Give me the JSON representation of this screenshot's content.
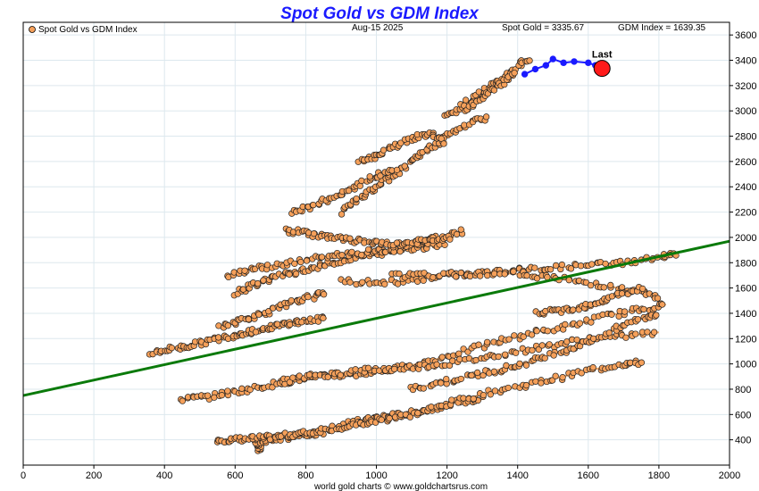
{
  "colors": {
    "title": "#1a1aff",
    "history_fill": "#f5a05a",
    "history_line": "#f0a868",
    "recent": "#1a1aff",
    "last": "#ff1a1a",
    "trend": "#0a7a0a",
    "grid": "#dde8ee"
  },
  "chart_data": {
    "type": "scatter",
    "title": "Spot Gold vs GDM Index",
    "date": "Aug-15  2025",
    "legend": "Spot Gold vs GDM Index",
    "legend_position": "top-left",
    "spot_gold_label": "Spot Gold = 3335.67",
    "gdm_index_label": "GDM Index = 1639.35",
    "last_label": "Last",
    "footer": "world gold charts © www.goldchartsrus.com",
    "xlabel": "",
    "ylabel": "",
    "xlim": [
      0,
      2000
    ],
    "ylim": [
      200,
      3700
    ],
    "x_ticks": [
      0,
      200,
      400,
      600,
      800,
      1000,
      1200,
      1400,
      1600,
      1800,
      2000
    ],
    "y_ticks": [
      400,
      600,
      800,
      1000,
      1200,
      1400,
      1600,
      1800,
      2000,
      2200,
      2400,
      2600,
      2800,
      3000,
      3200,
      3400,
      3600
    ],
    "grid": true,
    "trendline": {
      "x": [
        0,
        2000
      ],
      "y": [
        750,
        1970
      ]
    },
    "last_point": {
      "x": 1639,
      "y": 3336
    },
    "recent": {
      "x": [
        1420,
        1450,
        1480,
        1500,
        1530,
        1560,
        1600,
        1620,
        1639
      ],
      "y": [
        3290,
        3330,
        3360,
        3410,
        3380,
        3390,
        3380,
        3360,
        3336
      ]
    },
    "history_paths": [
      {
        "x": [
          670,
          670,
          660,
          700,
          750,
          800,
          850
        ],
        "y": [
          320,
          350,
          380,
          400,
          420,
          440,
          460
        ]
      },
      {
        "x": [
          550,
          600,
          650,
          700,
          760,
          820,
          880,
          940,
          1000,
          1080,
          1150,
          1230,
          1300
        ],
        "y": [
          400,
          400,
          410,
          420,
          440,
          460,
          500,
          540,
          580,
          600,
          640,
          700,
          720
        ]
      },
      {
        "x": [
          880,
          950,
          1020,
          1100,
          1200,
          1300,
          1400,
          1500,
          1600,
          1700,
          1750
        ],
        "y": [
          480,
          520,
          560,
          600,
          680,
          760,
          820,
          880,
          950,
          1000,
          1010
        ]
      },
      {
        "x": [
          450,
          520,
          600,
          680,
          760,
          850,
          950,
          1050,
          1150,
          1250,
          1350,
          1450,
          1550,
          1650,
          1750,
          1820
        ],
        "y": [
          720,
          740,
          780,
          820,
          870,
          900,
          920,
          960,
          1020,
          1100,
          1180,
          1250,
          1300,
          1380,
          1430,
          1470
        ]
      },
      {
        "x": [
          720,
          800,
          880,
          960,
          1040,
          1120,
          1200,
          1300,
          1400,
          1500,
          1600,
          1700,
          1800
        ],
        "y": [
          850,
          900,
          920,
          950,
          960,
          980,
          1000,
          1050,
          1100,
          1150,
          1200,
          1220,
          1250
        ]
      },
      {
        "x": [
          1100,
          1180,
          1260,
          1340,
          1420,
          1500,
          1580,
          1660,
          1740,
          1800
        ],
        "y": [
          800,
          850,
          900,
          950,
          1000,
          1080,
          1150,
          1250,
          1350,
          1400
        ]
      },
      {
        "x": [
          360,
          420,
          480,
          540,
          600,
          650,
          700,
          750,
          800,
          860
        ],
        "y": [
          1080,
          1120,
          1150,
          1190,
          1230,
          1260,
          1290,
          1320,
          1340,
          1360
        ]
      },
      {
        "x": [
          560,
          620,
          680,
          740,
          800,
          860
        ],
        "y": [
          1300,
          1350,
          1400,
          1460,
          1520,
          1560
        ]
      },
      {
        "x": [
          600,
          650,
          700,
          760,
          820,
          880,
          940,
          1000,
          1060,
          1120,
          1180,
          1250
        ],
        "y": [
          1560,
          1620,
          1680,
          1720,
          1760,
          1800,
          1840,
          1870,
          1900,
          1950,
          2000,
          2060
        ]
      },
      {
        "x": [
          580,
          640,
          720,
          800,
          880,
          960,
          1040,
          1120,
          1200
        ],
        "y": [
          1700,
          1750,
          1780,
          1820,
          1860,
          1880,
          1900,
          1920,
          1950
        ]
      },
      {
        "x": [
          740,
          800,
          860,
          920,
          980,
          1040,
          1100,
          1160,
          1220
        ],
        "y": [
          2050,
          2040,
          2000,
          1980,
          1960,
          1940,
          1960,
          1980,
          2000
        ]
      },
      {
        "x": [
          900,
          1000,
          1100,
          1200,
          1300,
          1400,
          1500,
          1600,
          1700,
          1800,
          1850
        ],
        "y": [
          1650,
          1640,
          1660,
          1700,
          1720,
          1740,
          1760,
          1780,
          1800,
          1840,
          1870
        ]
      },
      {
        "x": [
          1050,
          1150,
          1250,
          1350,
          1450,
          1550,
          1650,
          1750,
          1800
        ],
        "y": [
          1700,
          1700,
          1710,
          1720,
          1700,
          1660,
          1620,
          1560,
          1520
        ]
      },
      {
        "x": [
          1450,
          1520,
          1580,
          1640,
          1700,
          1760
        ],
        "y": [
          1400,
          1420,
          1450,
          1500,
          1560,
          1600
        ]
      },
      {
        "x": [
          900,
          950,
          1000,
          1050,
          1100,
          1150,
          1200,
          1260,
          1320
        ],
        "y": [
          2200,
          2300,
          2400,
          2500,
          2600,
          2700,
          2800,
          2900,
          2950
        ]
      },
      {
        "x": [
          760,
          820,
          880,
          940,
          1000,
          1060
        ],
        "y": [
          2200,
          2250,
          2320,
          2400,
          2480,
          2550
        ]
      },
      {
        "x": [
          950,
          1000,
          1050,
          1100,
          1150,
          1200
        ],
        "y": [
          2600,
          2650,
          2720,
          2780,
          2820,
          2750
        ]
      },
      {
        "x": [
          1200,
          1250,
          1300,
          1350,
          1400,
          1430
        ],
        "y": [
          2950,
          3050,
          3150,
          3250,
          3350,
          3420
        ]
      },
      {
        "x": [
          1250,
          1300,
          1350,
          1400
        ],
        "y": [
          3000,
          3100,
          3200,
          3300
        ]
      }
    ]
  }
}
